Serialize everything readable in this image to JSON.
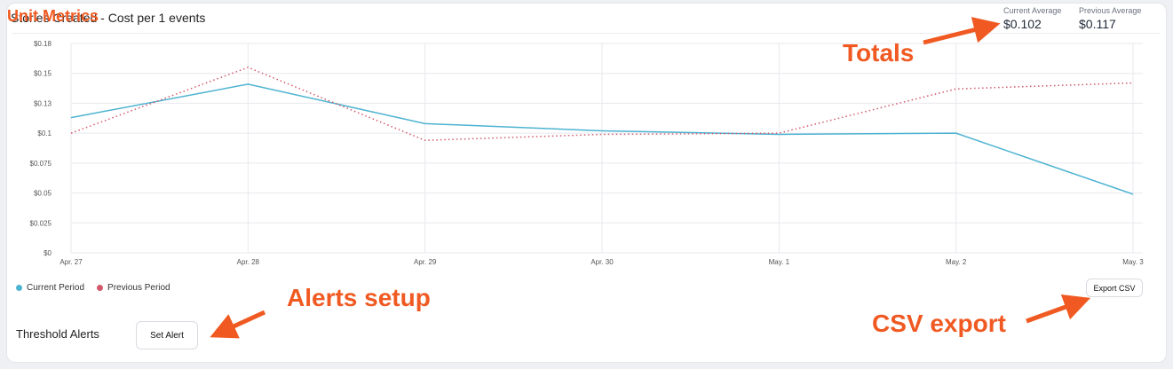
{
  "header": {
    "title": "Stories Created - Cost per 1 events",
    "title_overlay": "Unit Metrics",
    "current_average_label": "Current Average",
    "current_average_value": "$0.102",
    "previous_average_label": "Previous Average",
    "previous_average_value": "$0.117"
  },
  "legend": {
    "current_label": "Current Period",
    "previous_label": "Previous Period"
  },
  "alerts": {
    "title": "Threshold Alerts",
    "set_alert_label": "Set Alert"
  },
  "export": {
    "label": "Export CSV"
  },
  "annotations": {
    "totals": "Totals",
    "alerts_setup": "Alerts setup",
    "csv_export": "CSV export"
  },
  "colors": {
    "current": "#4db3d1",
    "previous": "#d2586a",
    "annotation": "#f05a22"
  },
  "chart_data": {
    "type": "line",
    "categories": [
      "Apr. 27",
      "Apr. 28",
      "Apr. 29",
      "Apr. 30",
      "May. 1",
      "May. 2",
      "May. 3"
    ],
    "y_ticks": [
      "$0",
      "$0.025",
      "$0.05",
      "$0.075",
      "$0.1",
      "$0.13",
      "$0.15",
      "$0.18"
    ],
    "ylim": [
      0,
      0.175
    ],
    "grid": true,
    "legend_position": "bottom-left",
    "series": [
      {
        "name": "Current Period",
        "values": [
          0.113,
          0.141,
          0.108,
          0.102,
          0.099,
          0.1,
          0.049
        ],
        "style": "solid"
      },
      {
        "name": "Previous Period",
        "values": [
          0.1,
          0.155,
          0.094,
          0.099,
          0.1,
          0.137,
          0.142
        ],
        "style": "dotted"
      }
    ]
  }
}
